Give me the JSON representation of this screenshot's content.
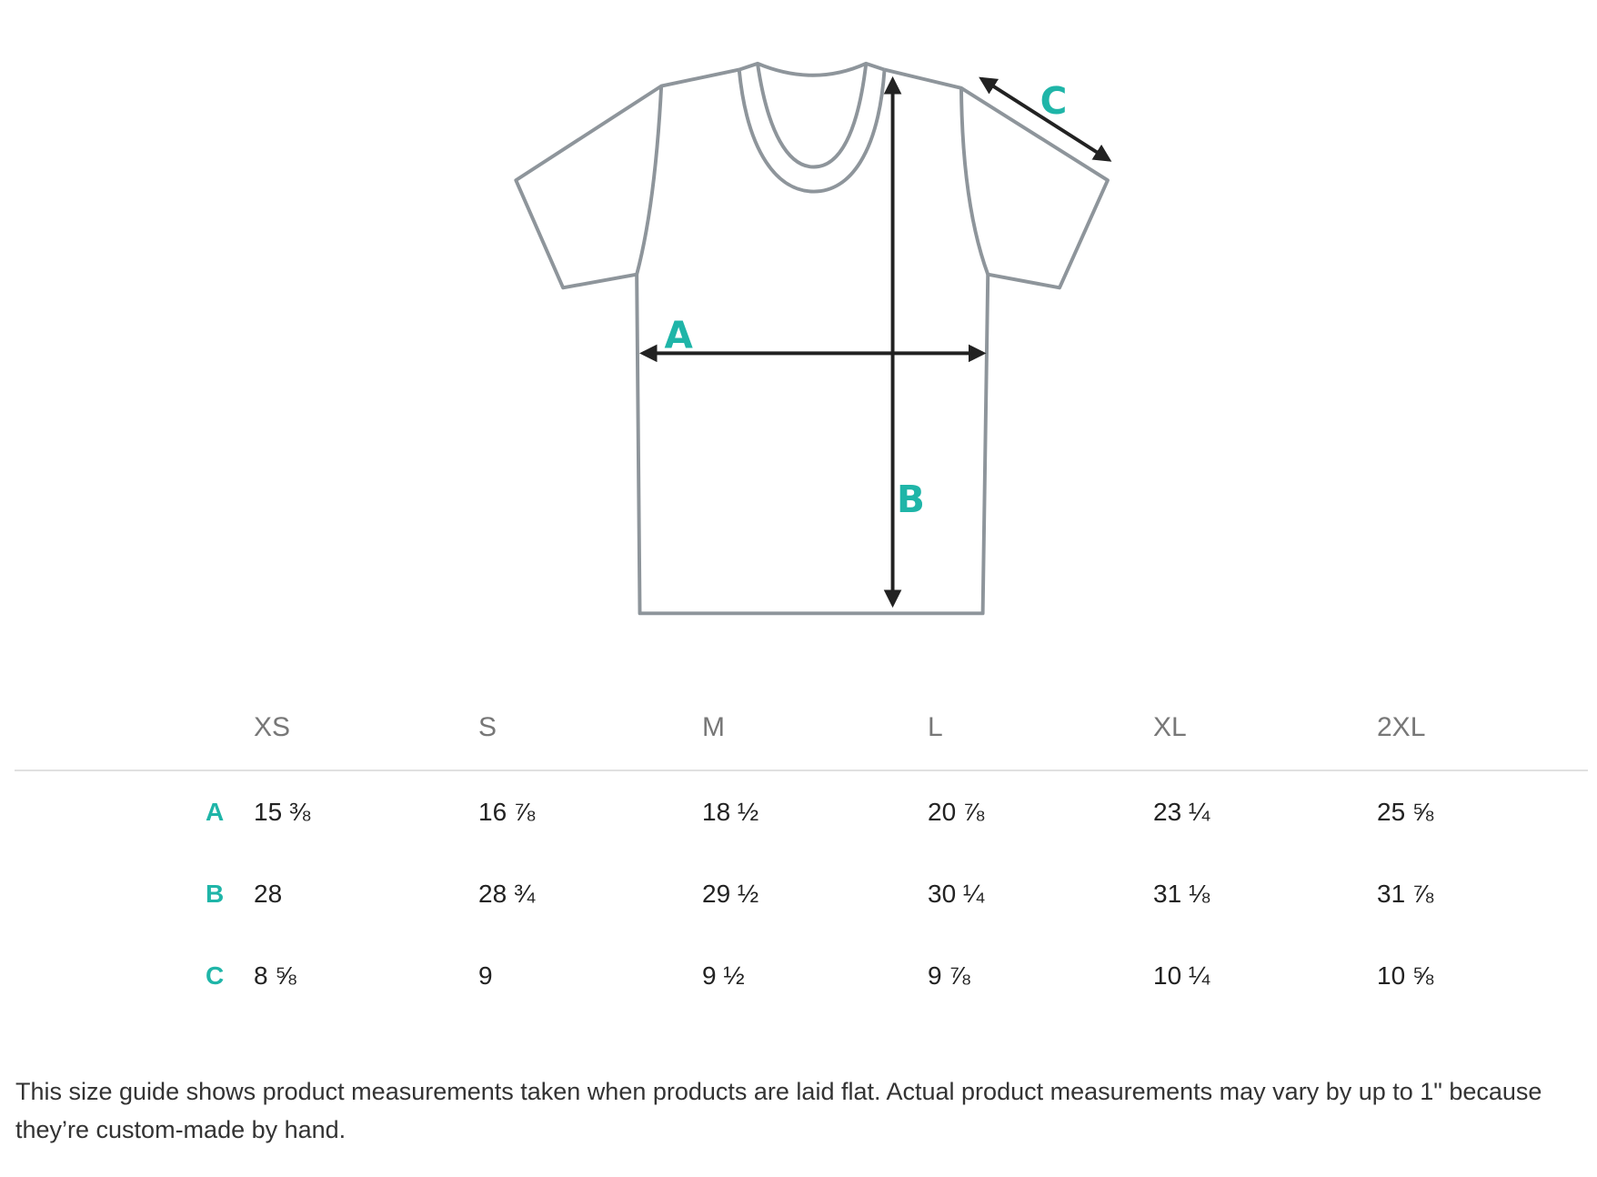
{
  "diagram": {
    "labels": {
      "a": "A",
      "b": "B",
      "c": "C"
    },
    "colors": {
      "outline": "#8e959b",
      "arrow": "#222222",
      "accent": "#1fb5a8"
    }
  },
  "table": {
    "sizes": [
      "XS",
      "S",
      "M",
      "L",
      "XL",
      "2XL"
    ],
    "rows": [
      {
        "label": "A",
        "values": [
          "15 ⅜",
          "16 ⅞",
          "18 ½",
          "20 ⅞",
          "23 ¼",
          "25 ⅝"
        ]
      },
      {
        "label": "B",
        "values": [
          "28",
          "28 ¾",
          "29 ½",
          "30 ¼",
          "31 ⅛",
          "31 ⅞"
        ]
      },
      {
        "label": "C",
        "values": [
          "8 ⅝",
          "9",
          "9 ½",
          "9 ⅞",
          "10 ¼",
          "10 ⅝"
        ]
      }
    ]
  },
  "note": "This size guide shows product measurements taken when products are laid flat. Actual product measurements may vary by up to 1\" because they’re custom-made by hand."
}
